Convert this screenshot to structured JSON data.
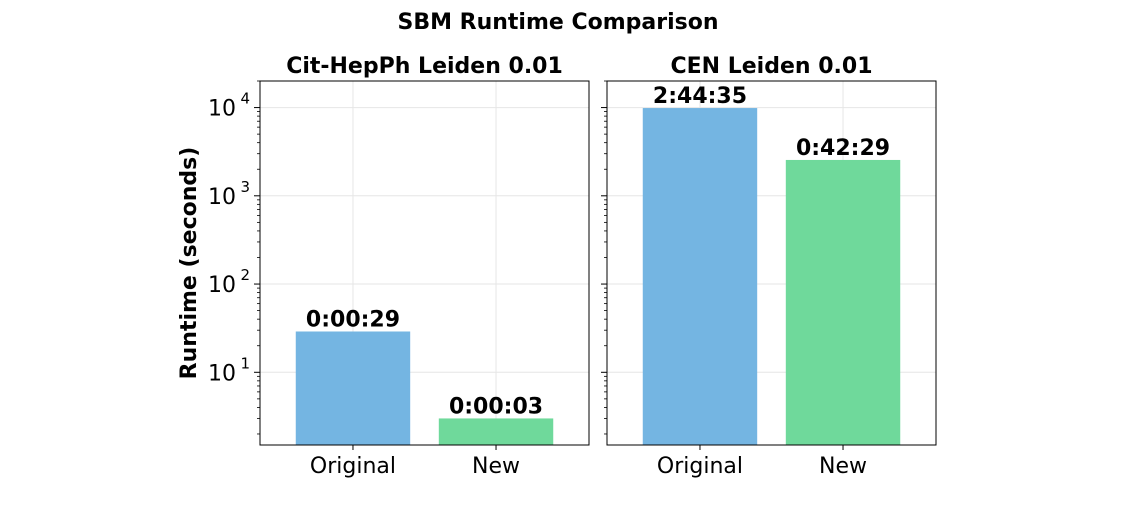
{
  "figure": {
    "suptitle": "SBM Runtime Comparison",
    "ylabel": "Runtime (seconds)"
  },
  "colors": {
    "original": "#74b5e2",
    "new": "#6fd99b",
    "grid": "#e6e6e6",
    "axis": "#000000"
  },
  "chart_data": [
    {
      "type": "bar",
      "title": "Cit-HepPh Leiden 0.01",
      "categories": [
        "Original",
        "New"
      ],
      "values": [
        29,
        3
      ],
      "data_labels": [
        "0:00:29",
        "0:00:03"
      ],
      "yscale": "log",
      "ylim": [
        1.5,
        20000
      ],
      "yticks": [
        10,
        100,
        1000,
        10000
      ],
      "ytick_labels": [
        {
          "base": "10",
          "exp": "1"
        },
        {
          "base": "10",
          "exp": "2"
        },
        {
          "base": "10",
          "exp": "3"
        },
        {
          "base": "10",
          "exp": "4"
        }
      ],
      "ylabel": "Runtime (seconds)",
      "grid": true
    },
    {
      "type": "bar",
      "title": "CEN Leiden 0.01",
      "categories": [
        "Original",
        "New"
      ],
      "values": [
        9875,
        2549
      ],
      "data_labels": [
        "2:44:35",
        "0:42:29"
      ],
      "yscale": "log",
      "ylim": [
        1.5,
        20000
      ],
      "yticks": [
        10,
        100,
        1000,
        10000
      ],
      "grid": true
    }
  ]
}
